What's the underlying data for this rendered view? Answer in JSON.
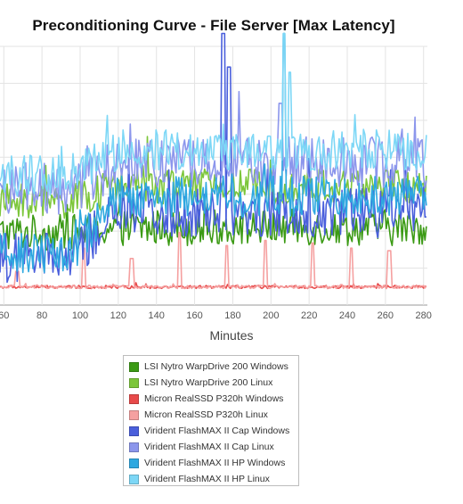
{
  "chart_data": {
    "type": "line",
    "title": "Preconditioning Curve - File Server [Max Latency]",
    "xlabel": "Minutes",
    "ylabel": "",
    "x_ticks": [
      60,
      80,
      100,
      120,
      140,
      160,
      180,
      200,
      220,
      240,
      260,
      280
    ],
    "xlim": [
      58,
      282
    ],
    "grid": true,
    "legend_position": "bottom",
    "series": [
      {
        "name": "LSI Nytro WarpDrive 200 Windows",
        "color": "#3b9a14",
        "level": 0.3,
        "noise": 0.07,
        "start_level": 0.28,
        "spikes": []
      },
      {
        "name": "LSI Nytro WarpDrive 200 Linux",
        "color": "#7cc63a",
        "level": 0.46,
        "noise": 0.07,
        "start_level": 0.4,
        "spikes": []
      },
      {
        "name": "Micron RealSSD P320h Windows",
        "color": "#e84a4a",
        "level": 0.07,
        "noise": 0.006,
        "start_level": 0.07,
        "spikes": []
      },
      {
        "name": "Micron RealSSD P320h Linux",
        "color": "#f5a0a0",
        "level": 0.07,
        "noise": 0.006,
        "start_level": 0.07,
        "spikes": [
          [
            67,
            0.13
          ],
          [
            102,
            0.22
          ],
          [
            127,
            0.18
          ],
          [
            152,
            0.28
          ],
          [
            177,
            0.23
          ],
          [
            197,
            0.25
          ],
          [
            222,
            0.24
          ],
          [
            242,
            0.22
          ],
          [
            262,
            0.21
          ]
        ]
      },
      {
        "name": "Virident FlashMAX II Cap Windows",
        "color": "#4a5fdc",
        "level": 0.36,
        "noise": 0.1,
        "start_level": 0.18,
        "spikes": [
          [
            175,
            1.05
          ],
          [
            178,
            0.92
          ]
        ]
      },
      {
        "name": "Virident FlashMAX II Cap Linux",
        "color": "#8c96ec",
        "level": 0.55,
        "noise": 0.1,
        "start_level": 0.45,
        "spikes": [
          [
            205,
            0.78
          ]
        ]
      },
      {
        "name": "Virident FlashMAX II HP Windows",
        "color": "#2ea8e0",
        "level": 0.42,
        "noise": 0.08,
        "start_level": 0.2,
        "spikes": [
          [
            207,
            1.05
          ]
        ]
      },
      {
        "name": "Virident FlashMAX II HP Linux",
        "color": "#7dd7f6",
        "level": 0.6,
        "noise": 0.08,
        "start_level": 0.5,
        "spikes": [
          [
            207,
            1.05
          ],
          [
            210,
            0.9
          ]
        ]
      }
    ]
  }
}
